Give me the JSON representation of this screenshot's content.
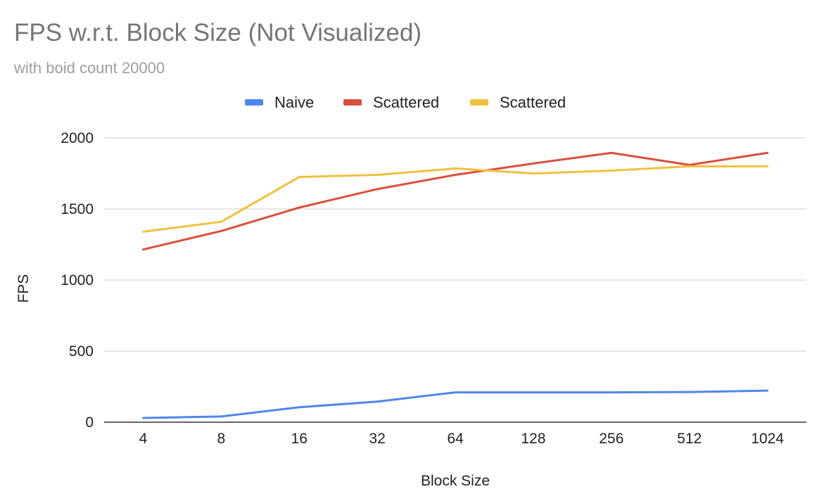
{
  "chart_data": {
    "type": "line",
    "title": "FPS w.r.t. Block Size (Not Visualized)",
    "subtitle": "with boid count 20000",
    "xlabel": "Block Size",
    "ylabel": "FPS",
    "categories": [
      "4",
      "8",
      "16",
      "32",
      "64",
      "128",
      "256",
      "512",
      "1024"
    ],
    "ylim": [
      0,
      2000
    ],
    "yticks": [
      0,
      500,
      1000,
      1500,
      2000
    ],
    "grid": true,
    "legend_position": "top",
    "series": [
      {
        "name": "Naive",
        "color": "#4f86ec",
        "values": [
          30,
          40,
          105,
          145,
          210,
          210,
          210,
          212,
          222
        ]
      },
      {
        "name": "Scattered",
        "color": "#d94f3d",
        "values": [
          1215,
          1345,
          1510,
          1640,
          1740,
          1820,
          1895,
          1810,
          1895
        ]
      },
      {
        "name": "Scattered",
        "color": "#f0c03f",
        "values": [
          1340,
          1410,
          1725,
          1740,
          1785,
          1750,
          1770,
          1800,
          1800
        ]
      }
    ]
  }
}
